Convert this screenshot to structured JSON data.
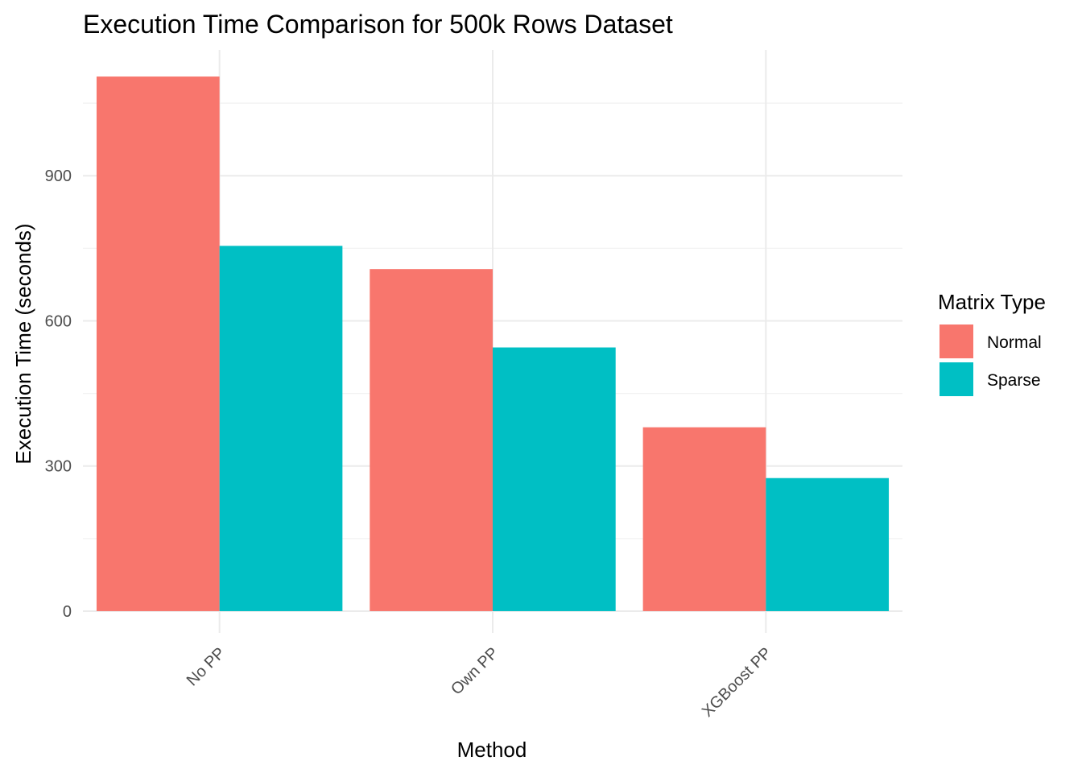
{
  "chart_data": {
    "type": "bar",
    "title": "Execution Time Comparison for 500k Rows Dataset",
    "xlabel": "Method",
    "ylabel": "Execution Time (seconds)",
    "categories": [
      "No PP",
      "Own PP",
      "XGBoost PP"
    ],
    "series": [
      {
        "name": "Normal",
        "color": "#F8766D",
        "values": [
          1105,
          707,
          380
        ]
      },
      {
        "name": "Sparse",
        "color": "#00BFC4",
        "values": [
          755,
          545,
          275
        ]
      }
    ],
    "ylim": [
      -45,
      1160
    ],
    "yticks": [
      0,
      300,
      600,
      900
    ],
    "grid": true,
    "legend": {
      "title": "Matrix Type",
      "position": "right"
    }
  }
}
